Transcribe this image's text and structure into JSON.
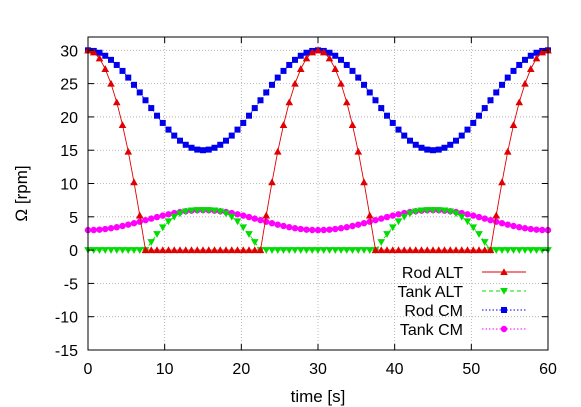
{
  "chart_data": {
    "type": "line",
    "xlabel": "time [s]",
    "ylabel": "Ω [rpm]",
    "xlim": [
      0,
      60
    ],
    "ylim": [
      -15,
      32
    ],
    "x_ticks": [
      0,
      10,
      20,
      30,
      40,
      50,
      60
    ],
    "y_ticks": [
      -15,
      -10,
      -5,
      0,
      5,
      10,
      15,
      20,
      25,
      30
    ],
    "grid": true,
    "legend_position": "bottom-right",
    "sample_step": 0.75,
    "series": [
      {
        "name": "Rod ALT",
        "color": "#e00000",
        "marker": "triangle-up",
        "line_style": "solid",
        "points": [
          [
            0,
            30
          ],
          [
            0.75,
            29.7
          ],
          [
            1.5,
            28.8
          ],
          [
            2.25,
            27.2
          ],
          [
            3,
            25
          ],
          [
            3.75,
            22.2
          ],
          [
            4.5,
            18.8
          ],
          [
            5.25,
            14.8
          ],
          [
            6,
            10.2
          ],
          [
            6.75,
            5.2
          ],
          [
            7.5,
            0
          ],
          [
            15,
            0
          ],
          [
            22.5,
            0
          ],
          [
            23.25,
            5.2
          ],
          [
            24,
            10.2
          ],
          [
            24.75,
            14.8
          ],
          [
            25.5,
            18.8
          ],
          [
            26.25,
            22.2
          ],
          [
            27,
            25
          ],
          [
            27.75,
            27.2
          ],
          [
            28.5,
            28.8
          ],
          [
            29.25,
            29.7
          ],
          [
            30,
            30
          ],
          [
            30.75,
            29.7
          ],
          [
            31.5,
            28.8
          ],
          [
            32.25,
            27.2
          ],
          [
            33,
            25
          ],
          [
            33.75,
            22.2
          ],
          [
            34.5,
            18.8
          ],
          [
            35.25,
            14.8
          ],
          [
            36,
            10.2
          ],
          [
            36.75,
            5.2
          ],
          [
            37.5,
            0
          ],
          [
            45,
            0
          ],
          [
            52.5,
            0
          ],
          [
            53.25,
            5.2
          ],
          [
            54,
            10.2
          ],
          [
            54.75,
            14.8
          ],
          [
            55.5,
            18.8
          ],
          [
            56.25,
            22.2
          ],
          [
            57,
            25
          ],
          [
            57.75,
            27.2
          ],
          [
            58.5,
            28.8
          ],
          [
            59.25,
            29.7
          ],
          [
            60,
            30
          ]
        ],
        "marker_ranges": [
          [
            0,
            60
          ]
        ]
      },
      {
        "name": "Tank ALT",
        "color": "#00dd00",
        "marker": "triangle-down",
        "line_style": "dashed",
        "points": [
          [
            0,
            0
          ],
          [
            7.5,
            0
          ],
          [
            8.25,
            1.2
          ],
          [
            9,
            2.4
          ],
          [
            9.75,
            3.4
          ],
          [
            10.5,
            4.3
          ],
          [
            11.25,
            5
          ],
          [
            12,
            5.5
          ],
          [
            12.75,
            5.8
          ],
          [
            13.5,
            5.95
          ],
          [
            14.25,
            6
          ],
          [
            15,
            6
          ],
          [
            15.75,
            6
          ],
          [
            16.5,
            5.95
          ],
          [
            17.25,
            5.8
          ],
          [
            18,
            5.5
          ],
          [
            18.75,
            5
          ],
          [
            19.5,
            4.3
          ],
          [
            20.25,
            3.4
          ],
          [
            21,
            2.4
          ],
          [
            21.75,
            1.2
          ],
          [
            22.5,
            0
          ],
          [
            37.5,
            0
          ],
          [
            38.25,
            1.2
          ],
          [
            39,
            2.4
          ],
          [
            39.75,
            3.4
          ],
          [
            40.5,
            4.3
          ],
          [
            41.25,
            5
          ],
          [
            42,
            5.5
          ],
          [
            42.75,
            5.8
          ],
          [
            43.5,
            5.95
          ],
          [
            44.25,
            6
          ],
          [
            45,
            6
          ],
          [
            45.75,
            6
          ],
          [
            46.5,
            5.95
          ],
          [
            47.25,
            5.8
          ],
          [
            48,
            5.5
          ],
          [
            48.75,
            5
          ],
          [
            49.5,
            4.3
          ],
          [
            50.25,
            3.4
          ],
          [
            51,
            2.4
          ],
          [
            51.75,
            1.2
          ],
          [
            52.5,
            0
          ],
          [
            60,
            0
          ]
        ],
        "marker_ranges": [
          [
            0,
            60
          ]
        ]
      },
      {
        "name": "Rod CM",
        "color": "#0000ee",
        "marker": "square",
        "line_style": "dotted",
        "function": "22.5 + 7.5*cos(2*pi*t/30)"
      },
      {
        "name": "Tank CM",
        "color": "#ff00ff",
        "marker": "circle",
        "line_style": "dotted",
        "function": "4.5 - 1.5*cos(2*pi*t/30)"
      }
    ]
  }
}
